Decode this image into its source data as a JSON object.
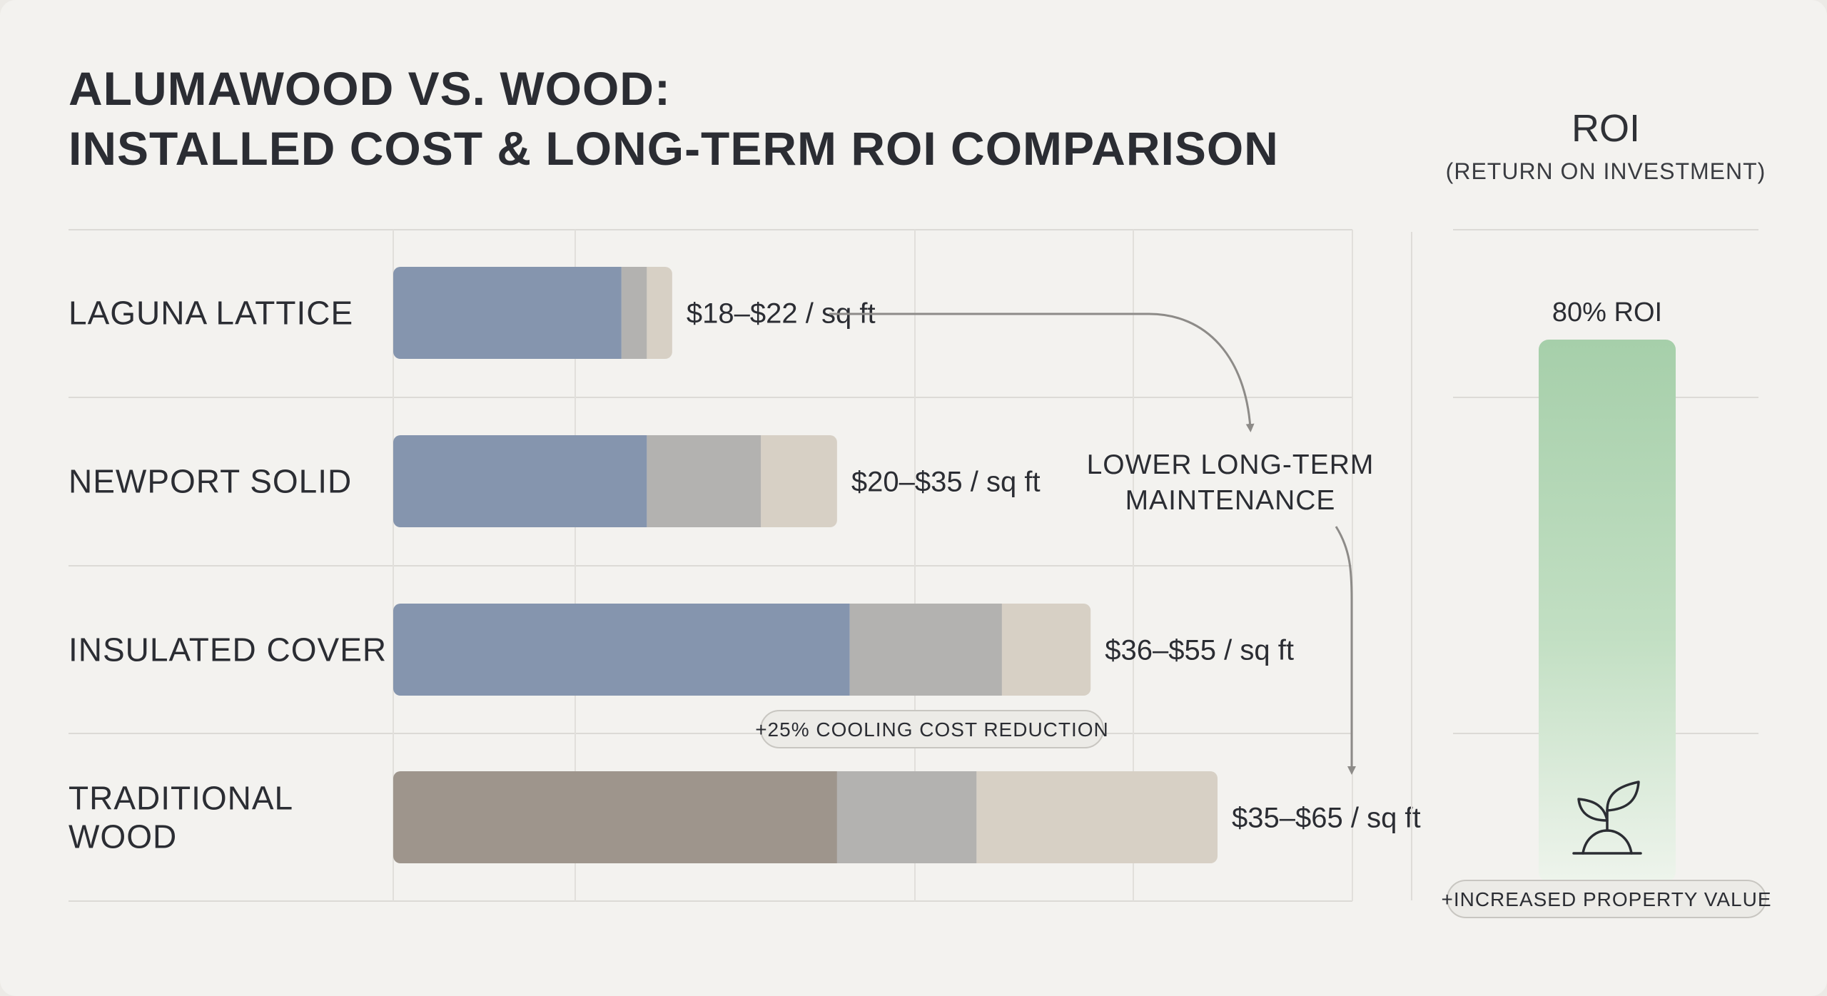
{
  "title": {
    "line1": "ALUMAWOOD VS. WOOD:",
    "line2": "INSTALLED COST & LONG-TERM ROI COMPARISON"
  },
  "roi_panel": {
    "heading": "ROI",
    "subheading": "(RETURN ON INVESTMENT)",
    "bar_label": "80% ROI",
    "badge": "+INCREASED PROPERTY VALUE",
    "icon": "sprout-icon"
  },
  "annotations": {
    "maintenance": [
      "LOWER LONG-TERM",
      "MAINTENANCE"
    ],
    "cooling_badge": "+25% COOLING COST REDUCTION"
  },
  "colors": {
    "alumawood": "#8595ae",
    "wood": "#9e958c",
    "gray_segment": "#b3b2b0",
    "beige_segment": "#d7d0c5",
    "roi_green": "#a6cfaa"
  },
  "chart_data": [
    {
      "type": "bar",
      "orientation": "horizontal",
      "stacked": true,
      "categories": [
        "LAGUNA LATTICE",
        "NEWPORT SOLID",
        "INSULATED COVER",
        "TRADITIONAL WOOD"
      ],
      "category_lines": [
        [
          "LAGUNA LATTICE"
        ],
        [
          "NEWPORT SOLID"
        ],
        [
          "INSULATED COVER"
        ],
        [
          "TRADITIONAL",
          "WOOD"
        ]
      ],
      "series": [
        {
          "values": [
            18,
            20,
            36,
            35
          ]
        },
        {
          "values": [
            2,
            9,
            12,
            11
          ]
        },
        {
          "values": [
            2,
            6,
            7,
            19
          ]
        }
      ],
      "totals": [
        22,
        35,
        55,
        65
      ],
      "value_labels": [
        "$18–$22 / sq ft",
        "$20–$35 / sq ft",
        "$36–$55 / sq ft",
        "$35–$65 / sq ft"
      ],
      "xlim": [
        0,
        65
      ],
      "grid": true,
      "title": "",
      "xlabel": "",
      "ylabel": ""
    },
    {
      "type": "bar",
      "categories": [
        "ROI"
      ],
      "values": [
        80
      ],
      "value_labels": [
        "80% ROI"
      ],
      "ylim": [
        0,
        100
      ]
    }
  ]
}
